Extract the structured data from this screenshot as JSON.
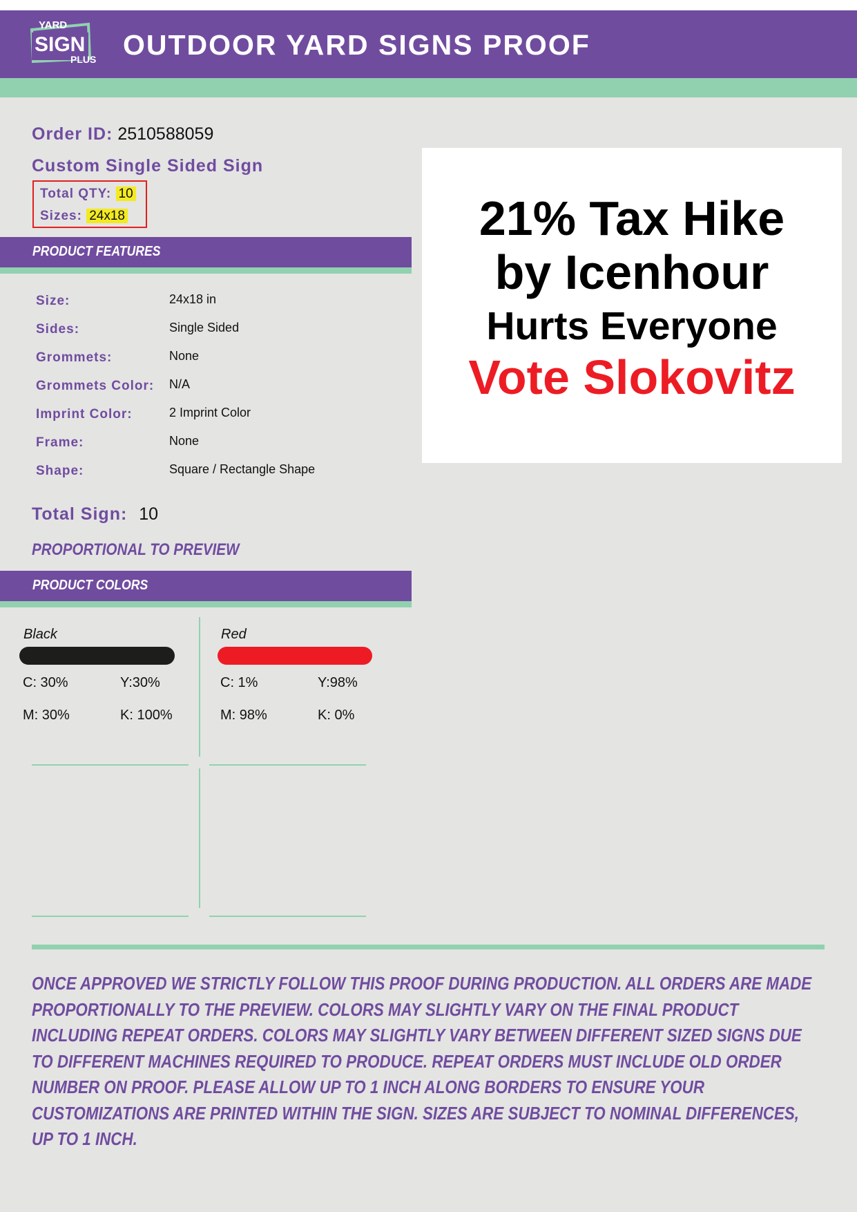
{
  "header": {
    "logo": {
      "line1": "YARD",
      "line2": "SIGN",
      "line3": "PLUS"
    },
    "title": "OUTDOOR YARD SIGNS PROOF"
  },
  "order": {
    "id_label": "Order ID:",
    "id_value": "2510588059",
    "product_name": "Custom Single Sided Sign",
    "total_qty_label": "Total QTY:",
    "total_qty_value": "10",
    "sizes_label": "Sizes:",
    "sizes_value": "24x18"
  },
  "features": {
    "section_title": "PRODUCT FEATURES",
    "rows": [
      {
        "label": "Size:",
        "value": "24x18 in"
      },
      {
        "label": "Sides:",
        "value": "Single Sided"
      },
      {
        "label": "Grommets:",
        "value": "None"
      },
      {
        "label": "Grommets Color:",
        "value": "N/A"
      },
      {
        "label": "Imprint Color:",
        "value": "2 Imprint Color"
      },
      {
        "label": "Frame:",
        "value": "None"
      },
      {
        "label": "Shape:",
        "value": "Square / Rectangle Shape"
      }
    ]
  },
  "total_sign": {
    "label": "Total Sign:",
    "value": "10"
  },
  "proportional_note": "PROPORTIONAL TO PREVIEW",
  "colors": {
    "section_title": "PRODUCT COLORS",
    "items": [
      {
        "name": "Black",
        "hex": "#1d1d1b",
        "c": "C: 30%",
        "y": "Y:30%",
        "m": "M: 30%",
        "k": "K: 100%"
      },
      {
        "name": "Red",
        "hex": "#ed1c24",
        "c": "C: 1%",
        "y": "Y:98%",
        "m": "M: 98%",
        "k": "K: 0%"
      }
    ]
  },
  "sign_preview": {
    "line1": "21% Tax Hike",
    "line2": "by Icenhour",
    "line3": "Hurts Everyone",
    "line4": "Vote Slokovitz",
    "text_color": "#000000",
    "accent_color": "#ed1c24"
  },
  "disclaimer": "ONCE APPROVED WE STRICTLY FOLLOW THIS PROOF DURING PRODUCTION. ALL ORDERS ARE MADE PROPORTIONALLY TO THE PREVIEW. COLORS MAY SLIGHTLY VARY ON THE FINAL PRODUCT INCLUDING REPEAT ORDERS. COLORS MAY SLIGHTLY VARY BETWEEN DIFFERENT SIZED SIGNS DUE TO DIFFERENT MACHINES REQUIRED TO PRODUCE. REPEAT ORDERS MUST INCLUDE OLD ORDER NUMBER ON PROOF. PLEASE ALLOW UP TO 1 INCH ALONG BORDERS TO ENSURE YOUR CUSTOMIZATIONS ARE PRINTED WITHIN THE SIGN. SIZES ARE SUBJECT TO NOMINAL DIFFERENCES, UP TO 1 INCH.",
  "theme": {
    "brand_purple": "#704c9f",
    "accent_green": "#91d1af",
    "highlight_yellow": "#f3ea20",
    "qty_border_red": "#e02020"
  }
}
